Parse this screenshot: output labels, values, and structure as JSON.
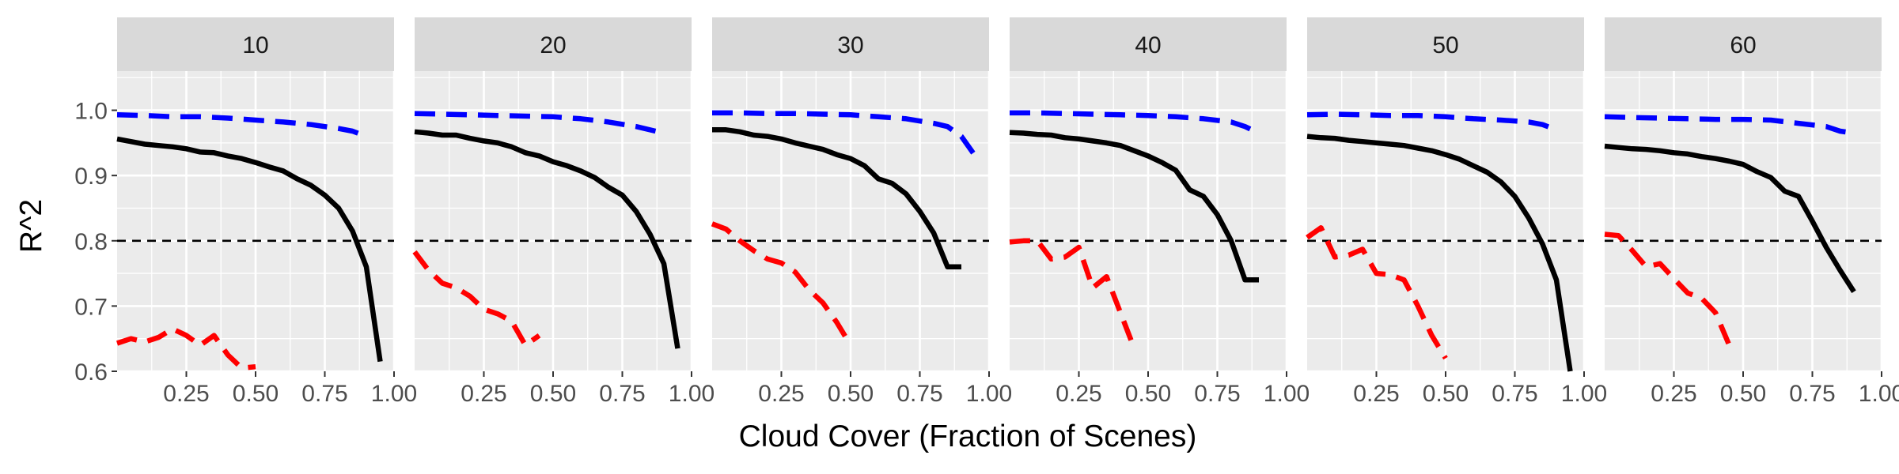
{
  "chart_data": {
    "type": "line",
    "facet_labels": [
      "10",
      "20",
      "30",
      "40",
      "50",
      "60"
    ],
    "xlabel": "Cloud Cover (Fraction of Scenes)",
    "ylabel": "R^2",
    "xlim": [
      0.0,
      1.0
    ],
    "ylim": [
      0.6,
      1.06
    ],
    "x_ticks": [
      "0.25",
      "0.50",
      "0.75",
      "1.00"
    ],
    "x_tick_values": [
      0.25,
      0.5,
      0.75,
      1.0
    ],
    "y_ticks": [
      "0.6",
      "0.7",
      "0.8",
      "0.9",
      "1.0"
    ],
    "y_tick_values": [
      0.6,
      0.7,
      0.8,
      0.9,
      1.0
    ],
    "reference_line": 0.8,
    "grid": true,
    "facets": [
      {
        "label": "10",
        "series": [
          {
            "color": "#0000ff",
            "style": "dashed",
            "x": [
              0.0,
              0.1,
              0.2,
              0.3,
              0.4,
              0.5,
              0.6,
              0.7,
              0.8,
              0.85,
              0.9
            ],
            "y": [
              0.993,
              0.992,
              0.99,
              0.99,
              0.988,
              0.985,
              0.982,
              0.978,
              0.972,
              0.968,
              0.96
            ]
          },
          {
            "color": "#000000",
            "style": "solid",
            "x": [
              0.0,
              0.05,
              0.1,
              0.15,
              0.2,
              0.25,
              0.3,
              0.35,
              0.4,
              0.45,
              0.5,
              0.55,
              0.6,
              0.65,
              0.7,
              0.75,
              0.8,
              0.85,
              0.9,
              0.95
            ],
            "y": [
              0.956,
              0.952,
              0.948,
              0.946,
              0.944,
              0.941,
              0.936,
              0.935,
              0.93,
              0.926,
              0.92,
              0.913,
              0.907,
              0.895,
              0.885,
              0.87,
              0.85,
              0.815,
              0.76,
              0.615
            ]
          },
          {
            "color": "#ff0000",
            "style": "dashed",
            "x": [
              0.0,
              0.05,
              0.1,
              0.15,
              0.2,
              0.25,
              0.3,
              0.35,
              0.4,
              0.45,
              0.5
            ],
            "y": [
              0.643,
              0.65,
              0.645,
              0.652,
              0.665,
              0.655,
              0.64,
              0.655,
              0.625,
              0.605,
              0.607
            ]
          }
        ]
      },
      {
        "label": "20",
        "series": [
          {
            "color": "#0000ff",
            "style": "dashed",
            "x": [
              0.0,
              0.1,
              0.2,
              0.3,
              0.4,
              0.5,
              0.6,
              0.7,
              0.8,
              0.9
            ],
            "y": [
              0.995,
              0.994,
              0.993,
              0.992,
              0.991,
              0.99,
              0.987,
              0.982,
              0.975,
              0.965
            ]
          },
          {
            "color": "#000000",
            "style": "solid",
            "x": [
              0.0,
              0.05,
              0.1,
              0.15,
              0.2,
              0.25,
              0.3,
              0.35,
              0.4,
              0.45,
              0.5,
              0.55,
              0.6,
              0.65,
              0.7,
              0.75,
              0.8,
              0.85,
              0.9,
              0.95
            ],
            "y": [
              0.967,
              0.965,
              0.962,
              0.962,
              0.957,
              0.953,
              0.95,
              0.944,
              0.935,
              0.93,
              0.921,
              0.915,
              0.907,
              0.897,
              0.882,
              0.87,
              0.845,
              0.81,
              0.765,
              0.635
            ]
          },
          {
            "color": "#ff0000",
            "style": "dashed",
            "x": [
              0.0,
              0.05,
              0.1,
              0.15,
              0.2,
              0.25,
              0.3,
              0.35,
              0.4,
              0.45
            ],
            "y": [
              0.783,
              0.755,
              0.735,
              0.728,
              0.715,
              0.695,
              0.688,
              0.677,
              0.64,
              0.655
            ]
          }
        ]
      },
      {
        "label": "30",
        "series": [
          {
            "color": "#0000ff",
            "style": "dashed",
            "x": [
              0.0,
              0.1,
              0.2,
              0.3,
              0.4,
              0.5,
              0.6,
              0.7,
              0.8,
              0.85,
              0.9,
              0.95
            ],
            "y": [
              0.996,
              0.996,
              0.995,
              0.995,
              0.994,
              0.993,
              0.99,
              0.987,
              0.98,
              0.975,
              0.96,
              0.93
            ]
          },
          {
            "color": "#000000",
            "style": "solid",
            "x": [
              0.0,
              0.05,
              0.1,
              0.15,
              0.2,
              0.25,
              0.3,
              0.35,
              0.4,
              0.45,
              0.5,
              0.55,
              0.6,
              0.65,
              0.7,
              0.75,
              0.8,
              0.85,
              0.9
            ],
            "y": [
              0.97,
              0.97,
              0.967,
              0.962,
              0.96,
              0.956,
              0.95,
              0.945,
              0.94,
              0.932,
              0.926,
              0.915,
              0.895,
              0.888,
              0.872,
              0.845,
              0.812,
              0.76,
              0.76
            ]
          },
          {
            "color": "#ff0000",
            "style": "dashed",
            "x": [
              0.0,
              0.05,
              0.1,
              0.15,
              0.2,
              0.25,
              0.3,
              0.35,
              0.4,
              0.45,
              0.5
            ],
            "y": [
              0.826,
              0.818,
              0.8,
              0.785,
              0.772,
              0.766,
              0.752,
              0.725,
              0.705,
              0.675,
              0.64
            ]
          }
        ]
      },
      {
        "label": "40",
        "series": [
          {
            "color": "#0000ff",
            "style": "dashed",
            "x": [
              0.0,
              0.1,
              0.2,
              0.3,
              0.4,
              0.5,
              0.6,
              0.7,
              0.8,
              0.85,
              0.9
            ],
            "y": [
              0.996,
              0.996,
              0.995,
              0.994,
              0.993,
              0.992,
              0.99,
              0.987,
              0.982,
              0.975,
              0.965
            ]
          },
          {
            "color": "#000000",
            "style": "solid",
            "x": [
              0.0,
              0.05,
              0.1,
              0.15,
              0.2,
              0.25,
              0.3,
              0.35,
              0.4,
              0.45,
              0.5,
              0.55,
              0.6,
              0.65,
              0.7,
              0.75,
              0.8,
              0.85,
              0.9
            ],
            "y": [
              0.966,
              0.965,
              0.963,
              0.962,
              0.958,
              0.956,
              0.953,
              0.95,
              0.946,
              0.938,
              0.93,
              0.92,
              0.908,
              0.878,
              0.868,
              0.84,
              0.8,
              0.74,
              0.74
            ]
          },
          {
            "color": "#ff0000",
            "style": "dashed",
            "x": [
              0.0,
              0.05,
              0.1,
              0.15,
              0.2,
              0.25,
              0.3,
              0.35,
              0.4,
              0.45
            ],
            "y": [
              0.798,
              0.8,
              0.8,
              0.772,
              0.775,
              0.79,
              0.728,
              0.745,
              0.69,
              0.635
            ]
          }
        ]
      },
      {
        "label": "50",
        "series": [
          {
            "color": "#0000ff",
            "style": "dashed",
            "x": [
              0.0,
              0.1,
              0.2,
              0.3,
              0.4,
              0.5,
              0.6,
              0.7,
              0.8,
              0.85,
              0.9
            ],
            "y": [
              0.993,
              0.994,
              0.993,
              0.992,
              0.992,
              0.99,
              0.987,
              0.985,
              0.982,
              0.978,
              0.97
            ]
          },
          {
            "color": "#000000",
            "style": "solid",
            "x": [
              0.0,
              0.05,
              0.1,
              0.15,
              0.2,
              0.25,
              0.3,
              0.35,
              0.4,
              0.45,
              0.5,
              0.55,
              0.6,
              0.65,
              0.7,
              0.75,
              0.8,
              0.85,
              0.9,
              0.95
            ],
            "y": [
              0.96,
              0.958,
              0.957,
              0.954,
              0.952,
              0.95,
              0.948,
              0.946,
              0.942,
              0.938,
              0.932,
              0.925,
              0.915,
              0.905,
              0.89,
              0.868,
              0.835,
              0.795,
              0.74,
              0.6
            ]
          },
          {
            "color": "#ff0000",
            "style": "dashed",
            "x": [
              0.0,
              0.05,
              0.1,
              0.15,
              0.2,
              0.25,
              0.3,
              0.35,
              0.4,
              0.45,
              0.5
            ],
            "y": [
              0.805,
              0.82,
              0.775,
              0.778,
              0.787,
              0.75,
              0.748,
              0.74,
              0.7,
              0.655,
              0.62
            ]
          }
        ]
      },
      {
        "label": "60",
        "series": [
          {
            "color": "#0000ff",
            "style": "dashed",
            "x": [
              0.0,
              0.1,
              0.2,
              0.3,
              0.4,
              0.5,
              0.6,
              0.7,
              0.8,
              0.85,
              0.9
            ],
            "y": [
              0.99,
              0.989,
              0.988,
              0.987,
              0.986,
              0.986,
              0.985,
              0.98,
              0.975,
              0.968,
              0.965
            ]
          },
          {
            "color": "#000000",
            "style": "solid",
            "x": [
              0.0,
              0.05,
              0.1,
              0.15,
              0.2,
              0.25,
              0.3,
              0.35,
              0.4,
              0.45,
              0.5,
              0.55,
              0.6,
              0.65,
              0.7,
              0.75,
              0.8,
              0.85,
              0.9
            ],
            "y": [
              0.945,
              0.943,
              0.941,
              0.94,
              0.938,
              0.935,
              0.933,
              0.929,
              0.926,
              0.922,
              0.917,
              0.906,
              0.897,
              0.876,
              0.868,
              0.83,
              0.79,
              0.755,
              0.722
            ]
          },
          {
            "color": "#ff0000",
            "style": "dashed",
            "x": [
              0.0,
              0.05,
              0.1,
              0.15,
              0.2,
              0.25,
              0.3,
              0.35,
              0.4,
              0.45
            ],
            "y": [
              0.81,
              0.808,
              0.785,
              0.76,
              0.765,
              0.742,
              0.72,
              0.712,
              0.69,
              0.64
            ]
          }
        ]
      }
    ]
  }
}
